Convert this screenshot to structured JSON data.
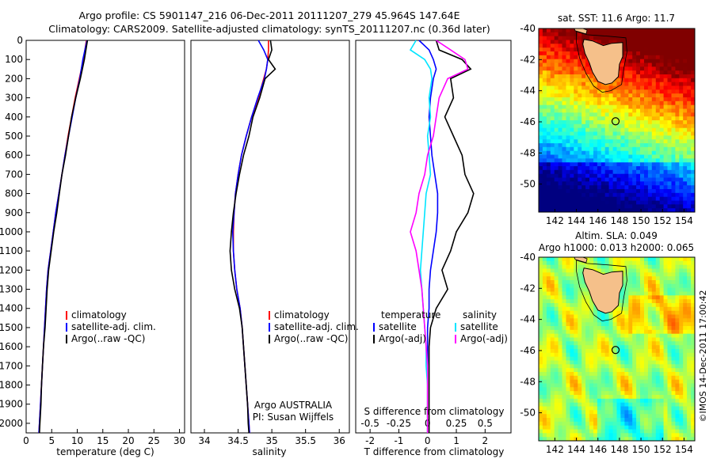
{
  "header": {
    "line1": "Argo profile: CS 5901147_216 06-Dec-2011 20111207_279 45.964S 147.64E",
    "line2": "Climatology: CARS2009. Satellite-adjusted climatology: synTS_20111207.nc (0.36d later)"
  },
  "credit": "©IMOS 14-Dec-2011 17:00:42",
  "colors": {
    "climatology": "#ff0000",
    "satellite": "#0000ff",
    "argo": "#000000",
    "sat_salinity": "#00e5ff",
    "argo_salinity": "#ff00ff",
    "land": "#f5c08a"
  },
  "chart_data": [
    {
      "type": "line",
      "panel": "temperature",
      "xlabel": "temperature (deg C)",
      "xlim": [
        0,
        31
      ],
      "xticks": [
        "0",
        "5",
        "10",
        "15",
        "20",
        "25",
        "30"
      ],
      "ylim": [
        2050,
        0
      ],
      "yticks": [
        "0",
        "100",
        "200",
        "300",
        "400",
        "500",
        "600",
        "700",
        "800",
        "900",
        "1000",
        "1100",
        "1200",
        "1300",
        "1400",
        "1500",
        "1600",
        "1700",
        "1800",
        "1900",
        "2000"
      ],
      "depth": [
        0,
        100,
        200,
        300,
        400,
        500,
        600,
        700,
        800,
        900,
        1000,
        1100,
        1200,
        1300,
        1400,
        1500,
        1600,
        1700,
        1800,
        1900,
        2000,
        2050
      ],
      "series": [
        {
          "name": "climatology",
          "color": "#ff0000",
          "x": [
            11.8,
            11.2,
            10.4,
            9.6,
            8.9,
            8.2,
            7.6,
            7.0,
            6.4,
            5.8,
            5.3,
            4.8,
            4.3,
            4.0,
            3.8,
            3.6,
            3.4,
            3.2,
            3.0,
            2.8,
            2.6,
            2.5
          ]
        },
        {
          "name": "satellite-adj. clim.",
          "color": "#0000ff",
          "x": [
            11.9,
            11.1,
            10.5,
            9.7,
            9.0,
            8.3,
            7.6,
            7.0,
            6.4,
            5.8,
            5.3,
            4.8,
            4.3,
            4.0,
            3.8,
            3.6,
            3.4,
            3.2,
            3.0,
            2.8,
            2.6,
            2.5
          ]
        },
        {
          "name": "Argo(..raw -QC)",
          "color": "#000000",
          "x": [
            12.0,
            11.4,
            10.6,
            9.7,
            8.9,
            8.3,
            7.7,
            7.0,
            6.5,
            6.0,
            5.4,
            4.9,
            4.4,
            4.1,
            3.9,
            3.7,
            3.4,
            3.2,
            3.0,
            2.9,
            2.7,
            2.6
          ]
        }
      ],
      "legend": [
        "climatology",
        "satellite-adj. clim.",
        "Argo(..raw -QC)"
      ]
    },
    {
      "type": "line",
      "panel": "salinity",
      "xlabel": "salinity",
      "xlim": [
        33.8,
        36.15
      ],
      "xticks": [
        "34",
        "34.5",
        "35",
        "35.5",
        "36"
      ],
      "ylim": [
        2050,
        0
      ],
      "depth": [
        0,
        50,
        100,
        150,
        200,
        300,
        400,
        500,
        600,
        700,
        800,
        900,
        1000,
        1100,
        1200,
        1300,
        1400,
        1500,
        1600,
        1700,
        1800,
        1900,
        2000,
        2050
      ],
      "series": [
        {
          "name": "climatology",
          "color": "#ff0000",
          "x": [
            34.95,
            34.95,
            34.94,
            34.92,
            34.88,
            34.8,
            34.7,
            34.62,
            34.55,
            34.5,
            34.46,
            34.44,
            34.43,
            34.43,
            34.45,
            34.48,
            34.53,
            34.56,
            34.58,
            34.6,
            34.62,
            34.64,
            34.66,
            34.67
          ]
        },
        {
          "name": "satellite-adj. clim.",
          "color": "#0000ff",
          "x": [
            34.8,
            34.88,
            34.94,
            34.92,
            34.89,
            34.79,
            34.7,
            34.62,
            34.55,
            34.5,
            34.46,
            34.44,
            34.42,
            34.43,
            34.45,
            34.48,
            34.53,
            34.56,
            34.58,
            34.6,
            34.62,
            34.64,
            34.66,
            34.67
          ]
        },
        {
          "name": "Argo(..raw -QC)",
          "color": "#000000",
          "x": [
            34.98,
            35.0,
            34.95,
            35.05,
            34.9,
            34.82,
            34.72,
            34.66,
            34.58,
            34.52,
            34.47,
            34.43,
            34.4,
            34.38,
            34.4,
            34.45,
            34.52,
            34.56,
            34.58,
            34.6,
            34.62,
            34.64,
            34.65,
            34.66
          ]
        }
      ],
      "legend": [
        "climatology",
        "satellite-adj. clim.",
        "Argo(..raw -QC)"
      ],
      "annotation": [
        "Argo AUSTRALIA",
        "PI: Susan Wijffels"
      ]
    },
    {
      "type": "line",
      "panel": "difference",
      "xlabel": "T difference from climatology",
      "xlabel_top": "S difference from climatology",
      "xlim": [
        -2.5,
        2.9
      ],
      "xticks": [
        "-2",
        "-1",
        "0",
        "1",
        "2"
      ],
      "xticks_top": [
        "-0.5",
        "-0.25",
        "0",
        "0.25",
        "0.5"
      ],
      "ylim": [
        2050,
        0
      ],
      "depth": [
        0,
        50,
        100,
        150,
        200,
        300,
        400,
        500,
        600,
        700,
        800,
        900,
        1000,
        1100,
        1200,
        1300,
        1400,
        1500,
        1600,
        1700,
        1800,
        1900,
        2000,
        2050
      ],
      "series": [
        {
          "name": "satellite",
          "group": "temperature",
          "color": "#0000ff",
          "x": [
            -0.3,
            0.05,
            0.2,
            0.3,
            0.2,
            0.1,
            0.05,
            0.1,
            0.15,
            0.25,
            0.35,
            0.35,
            0.3,
            0.2,
            0.1,
            0.05,
            0.05,
            0.0,
            0.0,
            0.0,
            0.0,
            0.0,
            0.0,
            0.0
          ]
        },
        {
          "name": "Argo(-adj)",
          "group": "temperature",
          "color": "#000000",
          "x": [
            0.3,
            0.4,
            1.2,
            1.5,
            0.8,
            0.9,
            0.6,
            0.9,
            1.2,
            1.3,
            1.6,
            1.4,
            1.0,
            0.8,
            0.5,
            0.7,
            0.3,
            0.1,
            0.05,
            0.05,
            0.05,
            0.05,
            0.05,
            0.05
          ]
        },
        {
          "name": "satellite",
          "group": "salinity",
          "color": "#00e5ff",
          "x": [
            -0.4,
            -0.6,
            -0.1,
            0.1,
            0.15,
            0.05,
            0.1,
            0.0,
            0.05,
            0.1,
            -0.05,
            -0.1,
            -0.15,
            -0.2,
            -0.25,
            -0.2,
            -0.15,
            -0.1,
            -0.05,
            -0.05,
            0.0,
            0.0,
            0.0,
            0.0
          ]
        },
        {
          "name": "Argo(-adj)",
          "group": "salinity",
          "color": "#ff00ff",
          "x": [
            0.3,
            0.8,
            1.3,
            1.4,
            0.7,
            0.4,
            0.3,
            0.2,
            0.0,
            -0.1,
            -0.3,
            -0.4,
            -0.6,
            -0.4,
            -0.3,
            -0.2,
            -0.15,
            -0.1,
            -0.05,
            0.0,
            0.0,
            0.0,
            0.0,
            0.0
          ]
        }
      ],
      "legend_groups": [
        "temperature",
        "salinity"
      ]
    },
    {
      "type": "heatmap",
      "panel": "sst_map",
      "title": "sat. SST: 11.6  Argo: 11.7",
      "xlim": [
        140.5,
        155
      ],
      "ylim": [
        -51.8,
        -40
      ],
      "xticks": [
        "142",
        "144",
        "146",
        "148",
        "150",
        "152",
        "154"
      ],
      "yticks": [
        "-40",
        "-42",
        "-44",
        "-46",
        "-48",
        "-50"
      ],
      "argo_position": {
        "lon": 147.64,
        "lat": -45.964
      }
    },
    {
      "type": "heatmap",
      "panel": "sla_map",
      "title": "Altim. SLA: 0.049",
      "subtitle": "Argo h1000: 0.013  h2000: 0.065",
      "xlim": [
        140.5,
        155
      ],
      "ylim": [
        -51.8,
        -40
      ],
      "xticks": [
        "142",
        "144",
        "146",
        "148",
        "150",
        "152",
        "154"
      ],
      "yticks": [
        "-40",
        "-42",
        "-44",
        "-46",
        "-48",
        "-50"
      ],
      "argo_position": {
        "lon": 147.64,
        "lat": -45.964
      }
    }
  ]
}
